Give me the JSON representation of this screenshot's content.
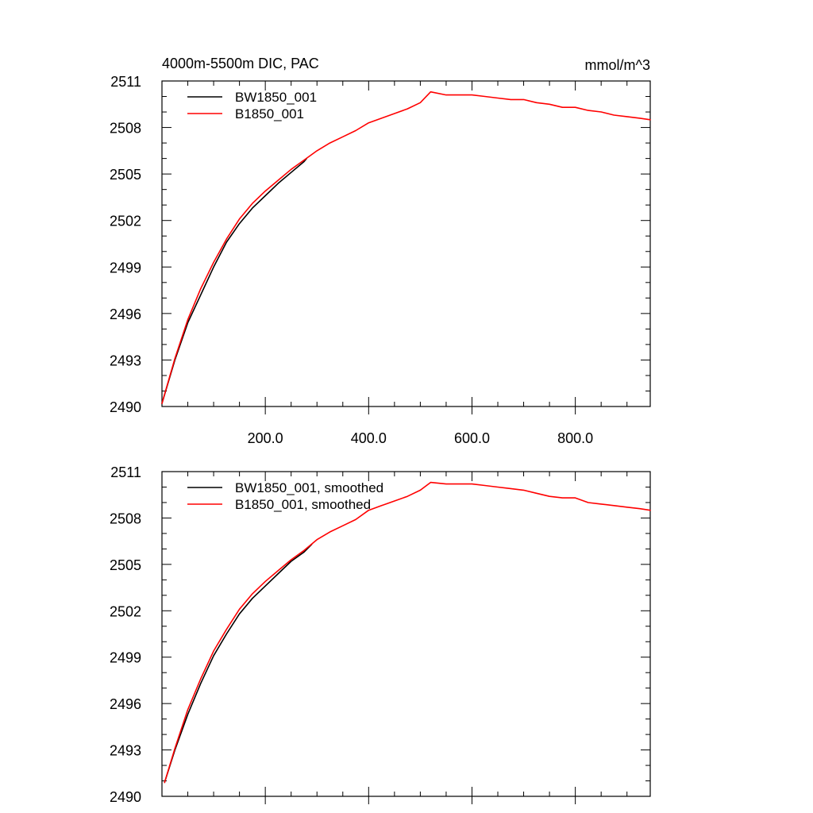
{
  "chart_data": [
    {
      "type": "line",
      "title": "4000m-5500m DIC, PAC",
      "units_label": "mmol/m^3",
      "xlim": [
        0,
        945
      ],
      "ylim": [
        2490,
        2511
      ],
      "x_ticks": [
        200,
        400,
        600,
        800
      ],
      "x_tick_labels": [
        "200.0",
        "400.0",
        "600.0",
        "800.0"
      ],
      "y_ticks": [
        2490,
        2493,
        2496,
        2499,
        2502,
        2505,
        2508,
        2511
      ],
      "y_tick_labels": [
        "2490",
        "2493",
        "2496",
        "2499",
        "2502",
        "2505",
        "2508",
        "2511"
      ],
      "grid": false,
      "legend_position": "top-left",
      "series": [
        {
          "name": "BW1850_001",
          "color": "#000000",
          "x": [
            0,
            25,
            50,
            75,
            100,
            125,
            150,
            175,
            200,
            225,
            250,
            275,
            280
          ],
          "y": [
            2490.2,
            2493.0,
            2495.4,
            2497.2,
            2499.0,
            2500.6,
            2501.8,
            2502.8,
            2503.6,
            2504.4,
            2505.1,
            2505.8,
            2506.0
          ]
        },
        {
          "name": "B1850_001",
          "color": "#ff0000",
          "x": [
            0,
            25,
            50,
            75,
            100,
            125,
            150,
            175,
            200,
            225,
            250,
            275,
            300,
            325,
            350,
            375,
            400,
            425,
            450,
            475,
            500,
            520,
            550,
            575,
            600,
            625,
            650,
            675,
            700,
            725,
            750,
            775,
            800,
            825,
            850,
            875,
            900,
            925,
            945
          ],
          "y": [
            2490.2,
            2493.1,
            2495.6,
            2497.6,
            2499.3,
            2500.8,
            2502.1,
            2503.1,
            2503.9,
            2504.6,
            2505.3,
            2505.9,
            2506.5,
            2507.0,
            2507.4,
            2507.8,
            2508.3,
            2508.6,
            2508.9,
            2509.2,
            2509.6,
            2510.3,
            2510.1,
            2510.1,
            2510.1,
            2510.0,
            2509.9,
            2509.8,
            2509.8,
            2509.6,
            2509.5,
            2509.3,
            2509.3,
            2509.1,
            2509.0,
            2508.8,
            2508.7,
            2508.6,
            2508.5
          ]
        }
      ]
    },
    {
      "type": "line",
      "title": "",
      "xlim": [
        0,
        945
      ],
      "ylim": [
        2490,
        2511
      ],
      "x_ticks": [
        200,
        400,
        600,
        800
      ],
      "y_ticks": [
        2490,
        2493,
        2496,
        2499,
        2502,
        2505,
        2508,
        2511
      ],
      "y_tick_labels": [
        "2490",
        "2493",
        "2496",
        "2499",
        "2502",
        "2505",
        "2508",
        "2511"
      ],
      "grid": false,
      "legend_position": "top-left",
      "series": [
        {
          "name": "BW1850_001, smoothed",
          "color": "#000000",
          "x": [
            5,
            25,
            50,
            75,
            100,
            125,
            150,
            175,
            200,
            225,
            250,
            275,
            290
          ],
          "y": [
            2490.9,
            2493.0,
            2495.3,
            2497.3,
            2499.1,
            2500.5,
            2501.8,
            2502.8,
            2503.6,
            2504.4,
            2505.2,
            2505.8,
            2506.3
          ]
        },
        {
          "name": "B1850_001, smoothed",
          "color": "#ff0000",
          "x": [
            5,
            25,
            50,
            75,
            100,
            125,
            150,
            175,
            200,
            225,
            250,
            275,
            300,
            325,
            350,
            375,
            400,
            425,
            450,
            475,
            500,
            520,
            550,
            575,
            600,
            625,
            650,
            675,
            700,
            725,
            750,
            775,
            800,
            825,
            850,
            875,
            900,
            925,
            945
          ],
          "y": [
            2490.9,
            2493.1,
            2495.6,
            2497.6,
            2499.4,
            2500.8,
            2502.1,
            2503.1,
            2503.9,
            2504.6,
            2505.3,
            2505.9,
            2506.6,
            2507.1,
            2507.5,
            2507.9,
            2508.5,
            2508.8,
            2509.1,
            2509.4,
            2509.8,
            2510.3,
            2510.2,
            2510.2,
            2510.2,
            2510.1,
            2510.0,
            2509.9,
            2509.8,
            2509.6,
            2509.4,
            2509.3,
            2509.3,
            2509.0,
            2508.9,
            2508.8,
            2508.7,
            2508.6,
            2508.5
          ]
        }
      ]
    }
  ]
}
